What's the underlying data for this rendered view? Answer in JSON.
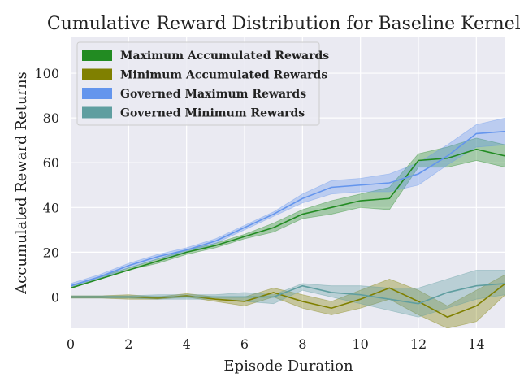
{
  "chart_data": {
    "type": "line",
    "title": "Cumulative Reward Distribution for Baseline Kernels",
    "xlabel": "Episode Duration",
    "ylabel": "Accumulated Reward Returns",
    "xlim": [
      0,
      15
    ],
    "ylim": [
      -14,
      116
    ],
    "x_ticks": [
      0,
      2,
      4,
      6,
      8,
      10,
      12,
      14
    ],
    "y_ticks": [
      0,
      20,
      40,
      60,
      80,
      100
    ],
    "grid": true,
    "legend_position": "top-left",
    "background": "#eaeaf2",
    "x": [
      0,
      1,
      2,
      3,
      4,
      5,
      6,
      7,
      8,
      9,
      10,
      11,
      12,
      13,
      14,
      15
    ],
    "series": [
      {
        "name": "Maximum Accumulated Rewards",
        "color": "#228b22",
        "values": [
          4,
          8,
          12,
          16,
          20,
          23,
          27,
          31,
          37,
          40,
          43,
          44,
          61,
          62,
          66,
          63
        ],
        "lower": [
          4,
          8,
          12,
          15,
          19,
          22,
          26,
          29,
          35,
          37,
          40,
          39,
          58,
          58,
          61,
          58
        ],
        "upper": [
          5,
          9,
          13,
          17,
          21,
          24,
          28,
          33,
          39,
          43,
          46,
          49,
          64,
          67,
          71,
          68
        ]
      },
      {
        "name": "Minimum Accumulated Rewards",
        "color": "#808000",
        "values": [
          0,
          0,
          0,
          -0.5,
          0.5,
          -1,
          -2,
          2,
          -2,
          -5,
          -1,
          4,
          -2,
          -9,
          -4,
          6
        ],
        "lower": [
          -0.5,
          -0.5,
          -1,
          -1,
          0,
          -2,
          -4,
          0,
          -5,
          -8,
          -5,
          -1,
          -8,
          -14,
          -11,
          1
        ],
        "upper": [
          0.5,
          0.5,
          1,
          0,
          1.5,
          0,
          0,
          4,
          1,
          -2,
          3,
          8,
          3,
          -4,
          3,
          10
        ]
      },
      {
        "name": "Governed Maximum Rewards",
        "color": "#6495ed",
        "values": [
          5,
          9,
          14,
          18,
          21,
          25,
          31,
          37,
          44,
          49,
          50,
          51,
          55,
          63,
          73,
          74
        ],
        "lower": [
          4,
          8,
          13,
          17,
          20,
          24,
          30,
          36,
          42,
          46,
          47,
          47,
          50,
          59,
          67,
          68
        ],
        "upper": [
          6,
          10,
          15,
          19,
          22,
          26,
          32,
          38,
          46,
          52,
          53,
          55,
          60,
          68,
          77,
          80
        ]
      },
      {
        "name": "Governed Minimum Rewards",
        "color": "#5f9ea0",
        "values": [
          0,
          0,
          0,
          0,
          0,
          0,
          0,
          0,
          5,
          2,
          1,
          -1,
          -3,
          2,
          5,
          6
        ],
        "lower": [
          -0.5,
          -0.5,
          -0.5,
          -1,
          -1,
          -1,
          -2,
          -3,
          3,
          0,
          -3,
          -6,
          -9,
          -5,
          -1,
          1
        ],
        "upper": [
          0.5,
          0.5,
          0.5,
          1,
          1,
          1,
          2,
          1,
          6,
          5,
          5,
          4,
          4,
          8,
          12,
          12
        ]
      }
    ]
  }
}
